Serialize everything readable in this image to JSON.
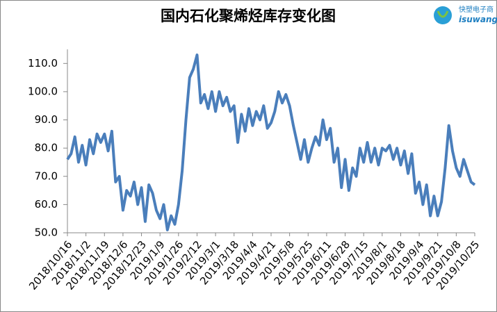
{
  "chart_data": {
    "type": "line",
    "title": "国内石化聚烯烃库存变化图",
    "logo_text": "快塑电子商",
    "logo_url": "isuwang.c",
    "categories": [
      "2018/10/16",
      null,
      null,
      null,
      null,
      "2018/11/2",
      null,
      null,
      null,
      null,
      "2018/11/19",
      null,
      null,
      null,
      null,
      "2018/12/6",
      null,
      null,
      null,
      null,
      "2018/12/23",
      null,
      null,
      null,
      null,
      "2019/1/9",
      null,
      null,
      null,
      null,
      "2019/1/26",
      null,
      null,
      null,
      null,
      "2019/2/12",
      null,
      null,
      null,
      null,
      "2019/3/1",
      null,
      null,
      null,
      null,
      "2019/3/18",
      null,
      null,
      null,
      null,
      "2019/4/4",
      null,
      null,
      null,
      null,
      "2019/4/21",
      null,
      null,
      null,
      null,
      "2019/5/8",
      null,
      null,
      null,
      null,
      "2019/5/25",
      null,
      null,
      null,
      null,
      "2019/6/11",
      null,
      null,
      null,
      null,
      "2019/6/28",
      null,
      null,
      null,
      null,
      "2019/7/15",
      null,
      null,
      null,
      null,
      "2019/8/1",
      null,
      null,
      null,
      null,
      "2019/8/18",
      null,
      null,
      null,
      null,
      "2019/9/4",
      null,
      null,
      null,
      null,
      "2019/9/21",
      null,
      null,
      null,
      null,
      "2019/10/8",
      null,
      null,
      null,
      null,
      "2019/10/25"
    ],
    "values": [
      76,
      78,
      84,
      75,
      81,
      74,
      83,
      78,
      85,
      82,
      85,
      79,
      86,
      68,
      70,
      58,
      65,
      63,
      68,
      60,
      66,
      54,
      67,
      64,
      58,
      55,
      60,
      51,
      56,
      53,
      60,
      72,
      90,
      105,
      108,
      113,
      96,
      99,
      94,
      100,
      93,
      100,
      95,
      98,
      93,
      95,
      82,
      92,
      86,
      94,
      88,
      93,
      90,
      95,
      87,
      89,
      93,
      100,
      96,
      99,
      95,
      88,
      82,
      76,
      83,
      75,
      80,
      84,
      81,
      90,
      83,
      87,
      75,
      80,
      66,
      76,
      65,
      73,
      70,
      80,
      75,
      82,
      75,
      80,
      74,
      80,
      79,
      81,
      76,
      80,
      74,
      79,
      71,
      78,
      64,
      68,
      60,
      67,
      56,
      63,
      56,
      61,
      73,
      88,
      79,
      73,
      70,
      76,
      72,
      68,
      67
    ],
    "color": "#4a7ebb",
    "ylim": [
      50,
      115
    ],
    "yticks": [
      {
        "value": 50,
        "label": "50.0"
      },
      {
        "value": 60,
        "label": "60.0"
      },
      {
        "value": 70,
        "label": "70.0"
      },
      {
        "value": 80,
        "label": "80.0"
      },
      {
        "value": 90,
        "label": "90.0"
      },
      {
        "value": 100,
        "label": "100.0"
      },
      {
        "value": 110,
        "label": "110.0"
      }
    ],
    "grid": false
  }
}
